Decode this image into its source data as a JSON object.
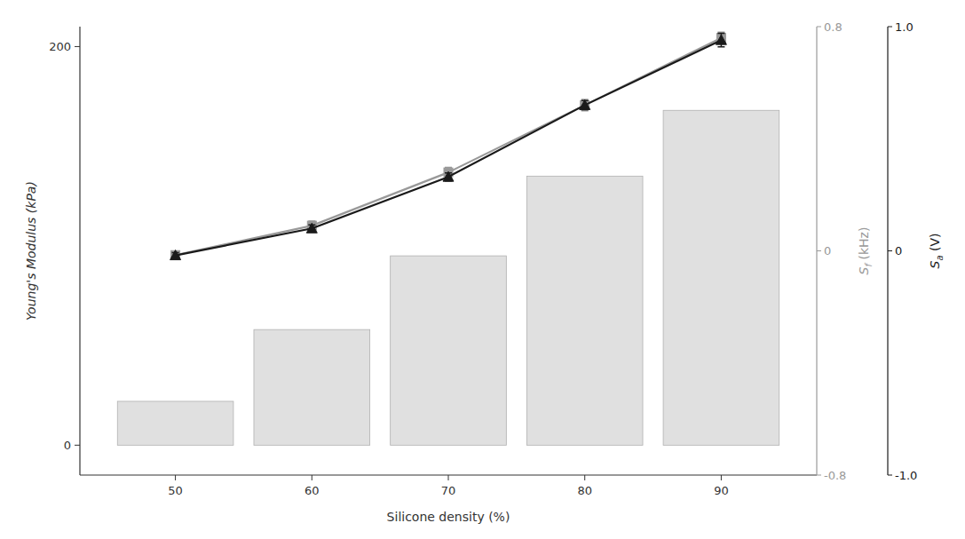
{
  "chart_data": {
    "type": "bar",
    "xlabel": "Silicone density (%)",
    "ylabel": "Young's Modulus (kPa)",
    "y2label": "Sf (kHz)",
    "y3label": "Sa (V)",
    "x": [
      50,
      60,
      70,
      80,
      90
    ],
    "xlim": [
      43,
      97
    ],
    "xticks": [
      50,
      60,
      70,
      80,
      90
    ],
    "ylim": [
      -15,
      210
    ],
    "yticks": [
      0,
      200
    ],
    "y2lim": [
      -0.8,
      0.8
    ],
    "y2ticks": [
      -0.8,
      0,
      0.8
    ],
    "y3lim": [
      -1.0,
      1.0
    ],
    "y3ticks": [
      {
        "value": -1.0,
        "label": "-1.0"
      },
      0,
      {
        "value": 1.0,
        "label": "1.0"
      }
    ],
    "grid": false,
    "series": [
      {
        "type": "bar",
        "color": "#e0e0e0",
        "values": [
          22,
          58,
          95,
          135,
          168
        ]
      },
      {
        "type": "line",
        "axis": "y2",
        "color": "#999999",
        "marker": "square",
        "values": [
          -0.015,
          0.09,
          0.28,
          0.52,
          0.76
        ],
        "errors": [
          0.012,
          0.016,
          0.018,
          0.02,
          0.02
        ]
      },
      {
        "type": "line",
        "axis": "y3",
        "color": "#1a1a1a",
        "marker": "triangle",
        "values": [
          -0.02,
          0.1,
          0.33,
          0.65,
          0.94
        ],
        "errors": [
          0.012,
          0.016,
          0.018,
          0.02,
          0.03
        ]
      }
    ]
  }
}
